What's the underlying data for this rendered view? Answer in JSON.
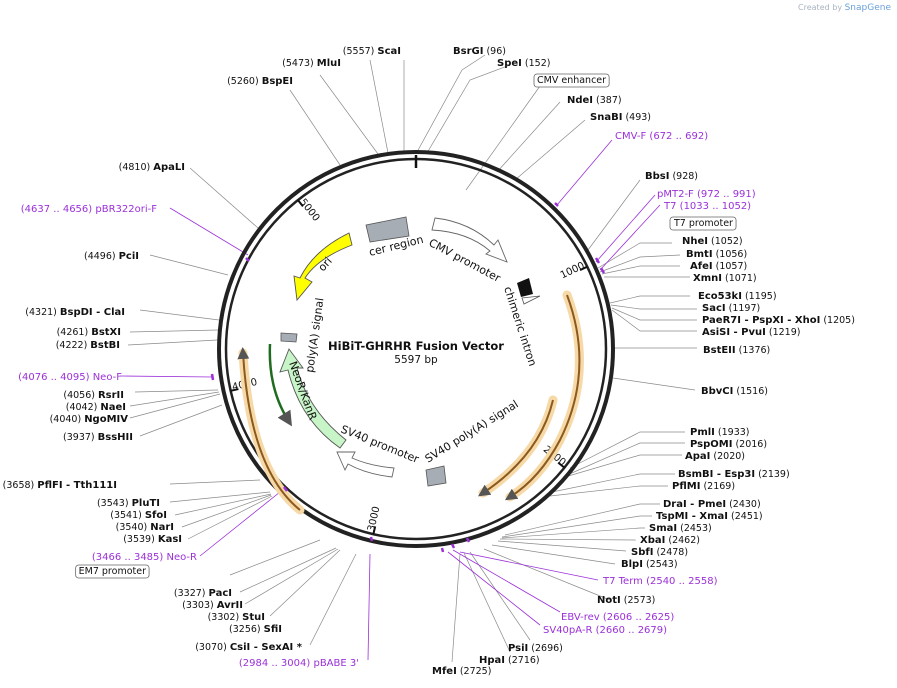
{
  "watermark": {
    "created_by": "Created by",
    "brand": "SnapGene"
  },
  "plasmid": {
    "name": "HiBiT-GHRHR Fusion Vector",
    "length": "5597 bp",
    "total_bp": 5597
  },
  "ticks": [
    {
      "label": "1000",
      "bp": 1000
    },
    {
      "label": "2000",
      "bp": 2000
    },
    {
      "label": "3000",
      "bp": 3000
    },
    {
      "label": "4000",
      "bp": 4000
    },
    {
      "label": "5000",
      "bp": 5000
    }
  ],
  "feature_labels": [
    {
      "text": "CMV promoter"
    },
    {
      "text": "chimeric intron"
    },
    {
      "text": "SV40 poly(A) signal"
    },
    {
      "text": "SV40 promoter"
    },
    {
      "text": "NeoR/KanR"
    },
    {
      "text": "poly(A) signal"
    },
    {
      "text": "ori"
    },
    {
      "text": "cer region"
    }
  ],
  "enzymes_right": [
    {
      "name": "BsrGI",
      "pos": "(96)"
    },
    {
      "name": "SpeI",
      "pos": "(152)"
    },
    {
      "name": "CMV enhancer",
      "pos": "",
      "boxed": true
    },
    {
      "name": "NdeI",
      "pos": "(387)"
    },
    {
      "name": "SnaBI",
      "pos": "(493)"
    },
    {
      "name": "CMV-F",
      "pos": "(672 .. 692)",
      "primer": true
    },
    {
      "name": "BbsI",
      "pos": "(928)"
    },
    {
      "name": "pMT2-F",
      "pos": "(972 .. 991)",
      "primer": true
    },
    {
      "name": "T7",
      "pos": "(1033 .. 1052)",
      "primer": true
    },
    {
      "name": "T7 promoter",
      "pos": "",
      "boxed": true
    },
    {
      "name": "NheI",
      "pos": "(1052)"
    },
    {
      "name": "BmtI",
      "pos": "(1056)"
    },
    {
      "name": "AfeI",
      "pos": "(1057)"
    },
    {
      "name": "XmnI",
      "pos": "(1071)"
    },
    {
      "name": "Eco53kI",
      "pos": "(1195)"
    },
    {
      "name": "SacI",
      "pos": "(1197)"
    },
    {
      "name": "PaeR7I",
      "name2": "PspXI",
      "name3": "XhoI",
      "pos": "(1205)"
    },
    {
      "name": "AsiSI",
      "name2": "PvuI",
      "pos": "(1219)"
    },
    {
      "name": "BstEII",
      "pos": "(1376)"
    },
    {
      "name": "BbvCI",
      "pos": "(1516)"
    },
    {
      "name": "PmlI",
      "pos": "(1933)"
    },
    {
      "name": "PspOMI",
      "pos": "(2016)"
    },
    {
      "name": "ApaI",
      "pos": "(2020)"
    },
    {
      "name": "BsmBI",
      "name2": "Esp3I",
      "pos": "(2139)"
    },
    {
      "name": "PflMI",
      "pos": "(2169)"
    },
    {
      "name": "DraI",
      "name2": "PmeI",
      "pos": "(2430)"
    },
    {
      "name": "TspMI",
      "name2": "XmaI",
      "pos": "(2451)"
    },
    {
      "name": "SmaI",
      "pos": "(2453)"
    },
    {
      "name": "XbaI",
      "pos": "(2462)"
    },
    {
      "name": "SbfI",
      "pos": "(2478)"
    },
    {
      "name": "BlpI",
      "pos": "(2543)"
    },
    {
      "name": "T7 Term",
      "pos": "(2540 .. 2558)",
      "primer": true
    },
    {
      "name": "NotI",
      "pos": "(2573)"
    },
    {
      "name": "EBV-rev",
      "pos": "(2606 .. 2625)",
      "primer": true
    },
    {
      "name": "SV40pA-R",
      "pos": "(2660 .. 2679)",
      "primer": true
    },
    {
      "name": "PsiI",
      "pos": "(2696)"
    },
    {
      "name": "HpaI",
      "pos": "(2716)"
    },
    {
      "name": "MfeI",
      "pos": "(2725)"
    }
  ],
  "enzymes_left": [
    {
      "name": "ScaI",
      "pos": "(5557)"
    },
    {
      "name": "MluI",
      "pos": "(5473)"
    },
    {
      "name": "BspEI",
      "pos": "(5260)"
    },
    {
      "name": "ApaLI",
      "pos": "(4810)"
    },
    {
      "name": "pBR322ori-F",
      "pos": "(4637 .. 4656)",
      "primer": true
    },
    {
      "name": "PciI",
      "pos": "(4496)"
    },
    {
      "name": "BspDI",
      "name2": "ClaI",
      "pos": "(4321)"
    },
    {
      "name": "BstXI",
      "pos": "(4261)"
    },
    {
      "name": "BstBI",
      "pos": "(4222)"
    },
    {
      "name": "Neo-F",
      "pos": "(4076 .. 4095)",
      "primer": true
    },
    {
      "name": "RsrII",
      "pos": "(4056)"
    },
    {
      "name": "NaeI",
      "pos": "(4042)"
    },
    {
      "name": "NgoMIV",
      "pos": "(4040)"
    },
    {
      "name": "BssHII",
      "pos": "(3937)"
    },
    {
      "name": "PflFI",
      "name2": "Tth111I",
      "pos": "(3658)"
    },
    {
      "name": "PluTI",
      "pos": "(3543)"
    },
    {
      "name": "SfoI",
      "pos": "(3541)"
    },
    {
      "name": "NarI",
      "pos": "(3540)"
    },
    {
      "name": "KasI",
      "pos": "(3539)"
    },
    {
      "name": "Neo-R",
      "pos": "(3466 .. 3485)",
      "primer": true
    },
    {
      "name": "EM7 promoter",
      "pos": "",
      "boxed": true
    },
    {
      "name": "PacI",
      "pos": "(3327)"
    },
    {
      "name": "AvrII",
      "pos": "(3303)"
    },
    {
      "name": "StuI",
      "pos": "(3302)"
    },
    {
      "name": "SfiI",
      "pos": "(3256)"
    },
    {
      "name": "CsiI",
      "name2": "SexAI",
      "star": "*",
      "pos": "(3070)"
    },
    {
      "name": "pBABE 3'",
      "pos": "(2984 .. 3004)",
      "primer": true
    }
  ],
  "colors": {
    "primer": "#9b30d9",
    "ring": "#222222",
    "ori": "#ffff00",
    "neo": "#c8f5c8",
    "orf": "#e3a25e"
  }
}
